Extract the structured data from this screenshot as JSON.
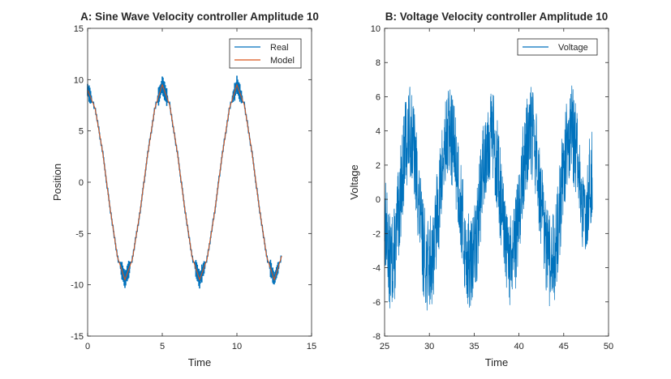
{
  "chart_data": [
    {
      "type": "line",
      "title": "A: Sine Wave Velocity controller Amplitude 10",
      "xlabel": "Time",
      "ylabel": "Position",
      "xlim": [
        0,
        15
      ],
      "ylim": [
        -15,
        15
      ],
      "xticks": [
        0,
        5,
        10,
        15
      ],
      "yticks": [
        -15,
        -10,
        -5,
        0,
        5,
        10,
        15
      ],
      "xtick_labels": [
        "0",
        "5",
        "10",
        "15"
      ],
      "ytick_labels": [
        "-15",
        "-10",
        "-5",
        "0",
        "5",
        "10",
        "15"
      ],
      "grid": false,
      "legend": "top-right",
      "series": [
        {
          "name": "Real",
          "color": "#0072BD",
          "style": "quantized-sine",
          "x": [
            0,
            0.5,
            1.0,
            1.5,
            2.0,
            2.5,
            3.0,
            3.5,
            4.0,
            4.5,
            5.0,
            5.5,
            6.0,
            6.5,
            7.0,
            7.5,
            8.0,
            8.5,
            9.0,
            9.5,
            10.0,
            10.5,
            11.0,
            11.5,
            12.0,
            12.5,
            13.0
          ],
          "y": [
            9,
            7.2,
            3.0,
            -2.5,
            -7.3,
            -9.5,
            -7.5,
            -3.0,
            2.5,
            7.2,
            9.5,
            7.5,
            3.0,
            -2.5,
            -7.3,
            -9.5,
            -7.5,
            -3.0,
            2.5,
            7.2,
            9.5,
            7.5,
            3.0,
            -2.5,
            -7.3,
            -9.5,
            -7.2
          ]
        },
        {
          "name": "Model",
          "color": "#D95319",
          "x": [
            0,
            0.5,
            1.0,
            1.5,
            2.0,
            2.5,
            3.0,
            3.5,
            4.0,
            4.5,
            5.0,
            5.5,
            6.0,
            6.5,
            7.0,
            7.5,
            8.0,
            8.5,
            9.0,
            9.5,
            10.0,
            10.5,
            11.0,
            11.5,
            12.0,
            12.5,
            13.0
          ],
          "y": [
            9,
            7.2,
            3.0,
            -2.5,
            -7.3,
            -9.5,
            -7.5,
            -3.0,
            2.5,
            7.2,
            9.5,
            7.5,
            3.0,
            -2.5,
            -7.3,
            -9.5,
            -7.5,
            -3.0,
            2.5,
            7.2,
            9.5,
            7.5,
            3.0,
            -2.5,
            -7.3,
            -9.5,
            -7.2
          ]
        }
      ]
    },
    {
      "type": "line",
      "title": "B: Voltage Velocity controller Amplitude 10",
      "xlabel": "Time",
      "ylabel": "Voltage",
      "xlim": [
        25,
        50
      ],
      "ylim": [
        -8,
        10
      ],
      "xticks": [
        25,
        30,
        35,
        40,
        45,
        50
      ],
      "yticks": [
        -8,
        -6,
        -4,
        -2,
        0,
        2,
        4,
        6,
        8,
        10
      ],
      "xtick_labels": [
        "25",
        "30",
        "35",
        "40",
        "45",
        "50"
      ],
      "ytick_labels": [
        "-8",
        "-6",
        "-4",
        "-2",
        "0",
        "2",
        "4",
        "6",
        "8",
        "10"
      ],
      "grid": false,
      "legend": "top-right",
      "series": [
        {
          "name": "Voltage",
          "color": "#0072BD",
          "style": "noisy",
          "x": [
            25,
            25.6,
            26.2,
            26.8,
            27.4,
            28.0,
            28.6,
            29.2,
            29.8,
            30.4,
            31.0,
            31.6,
            32.2,
            32.8,
            33.4,
            34.0,
            34.6,
            35.2,
            35.8,
            36.4,
            37.0,
            37.6,
            38.2,
            38.8,
            39.4,
            40.0,
            40.6,
            41.2,
            41.8,
            42.4,
            43.0,
            43.6,
            44.2,
            44.8,
            45.4,
            46.0,
            46.6,
            47.2,
            47.8,
            48.2
          ],
          "y": [
            -1.0,
            -3.8,
            -3.0,
            0.5,
            3.5,
            4.0,
            1.2,
            -2.5,
            -4.0,
            -3.2,
            -0.5,
            2.5,
            4.0,
            3.0,
            0.2,
            -3.0,
            -4.0,
            -2.6,
            0.8,
            3.5,
            4.0,
            2.0,
            -1.5,
            -3.8,
            -3.5,
            -0.8,
            2.4,
            4.0,
            3.2,
            0.0,
            -3.0,
            -4.0,
            -2.6,
            0.8,
            3.5,
            4.0,
            2.0,
            -1.5,
            0.5,
            2.0
          ],
          "noise_amplitude": 2.8
        }
      ]
    }
  ]
}
